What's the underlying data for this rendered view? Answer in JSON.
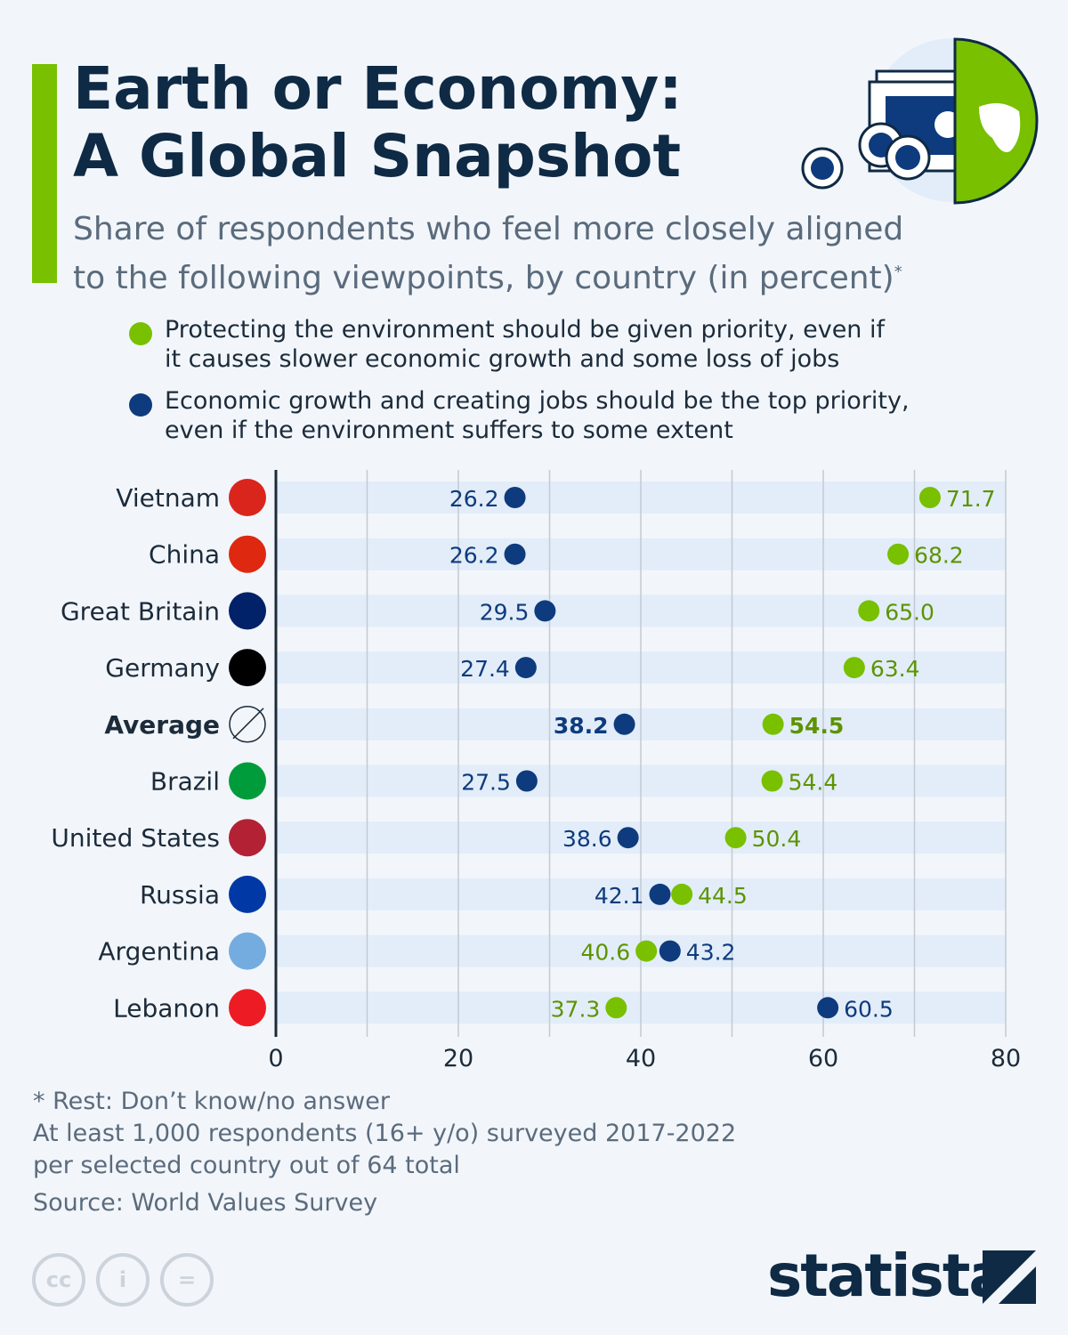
{
  "header": {
    "title_line1": "Earth or Economy:",
    "title_line2": "A Global Snapshot",
    "subtitle_line1": "Share of respondents who feel more closely aligned",
    "subtitle_line2": "to the following viewpoints, by country (in percent)",
    "subtitle_mark": "*"
  },
  "chart_data": {
    "type": "scatter",
    "orientation": "horizontal dot plot",
    "categories": [
      "Vietnam",
      "China",
      "Great Britain",
      "Germany",
      "Average",
      "Brazil",
      "United States",
      "Russia",
      "Argentina",
      "Lebanon"
    ],
    "highlighted_category": "Average",
    "series": [
      {
        "name": "Protecting the environment should be given priority, even if it causes slower economic growth and some loss of jobs",
        "name_line1": "Protecting the environment should be given priority, even if",
        "name_line2": "it causes slower economic growth and some loss of jobs",
        "color": "#78c000",
        "values": [
          71.7,
          68.2,
          65.0,
          63.4,
          54.5,
          54.4,
          50.4,
          44.5,
          40.6,
          37.3
        ],
        "labels": [
          "71.7",
          "68.2",
          "65.0",
          "63.4",
          "54.5",
          "54.4",
          "50.4",
          "44.5",
          "40.6",
          "37.3"
        ]
      },
      {
        "name": "Economic growth and creating jobs should be the top priority, even if the environment suffers to some extent",
        "name_line1": "Economic growth and creating jobs should be the top priority,",
        "name_line2": "even if the environment suffers to some extent",
        "color": "#0e3b7d",
        "values": [
          26.2,
          26.2,
          29.5,
          27.4,
          38.2,
          27.5,
          38.6,
          42.1,
          43.2,
          60.5
        ],
        "labels": [
          "26.2",
          "26.2",
          "29.5",
          "27.4",
          "38.2",
          "27.5",
          "38.6",
          "42.1",
          "43.2",
          "60.5"
        ]
      }
    ],
    "xlim": [
      0,
      80
    ],
    "xticks": [
      0,
      20,
      40,
      60,
      80
    ],
    "xtick_labels": [
      "0",
      "20",
      "40",
      "60",
      "80"
    ],
    "grid": "vertical every 10",
    "legend_placement": "top"
  },
  "footer": {
    "note1": "* Rest: Don’t know/no answer",
    "note2": "At least 1,000 respondents (16+ y/o) surveyed 2017-2022",
    "note3": "per selected country out of 64 total",
    "source": "Source: World Values Survey",
    "brand": "statista",
    "license_icons": [
      "cc-icon",
      "attribution-icon",
      "no-derivatives-icon"
    ]
  }
}
